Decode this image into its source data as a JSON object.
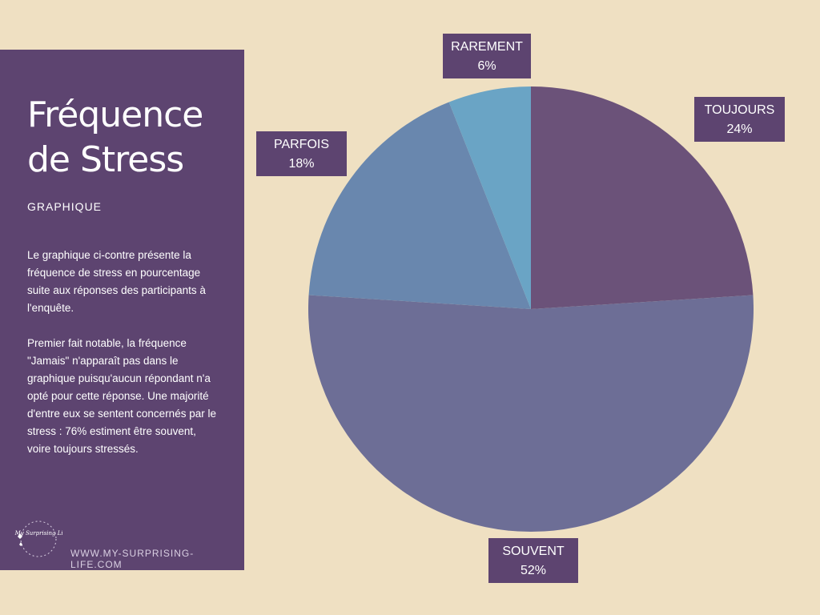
{
  "panel": {
    "title_line1": "Fréquence",
    "title_line2": "de Stress",
    "subtitle": "GRAPHIQUE",
    "paragraph1": "Le graphique ci-contre présente la fréquence de stress en pourcentage suite aux réponses des participants à l'enquête.",
    "paragraph2": "Premier fait notable, la fréquence \"Jamais\" n'apparaît pas dans le graphique puisqu'aucun répondant n'a opté pour cette réponse. Une majorité d'entre eux se sentent concernés par le stress : 76% estiment être souvent, voire toujours stressés.",
    "logo_text": "My Surprising Life",
    "footer_url": "WWW.MY-SURPRISING-LIFE.COM"
  },
  "chart_data": {
    "type": "pie",
    "title": "Fréquence de Stress",
    "unit": "%",
    "slices": [
      {
        "key": "toujours",
        "label": "TOUJOURS",
        "value": 24,
        "value_label": "24%",
        "color": "#6b5279"
      },
      {
        "key": "souvent",
        "label": "SOUVENT",
        "value": 52,
        "value_label": "52%",
        "color": "#6d6e96"
      },
      {
        "key": "parfois",
        "label": "PARFOIS",
        "value": 18,
        "value_label": "18%",
        "color": "#6987ae"
      },
      {
        "key": "rarement",
        "label": "RAREMENT",
        "value": 6,
        "value_label": "6%",
        "color": "#6aa4c5"
      }
    ]
  },
  "colors": {
    "background": "#efe0c2",
    "panel": "#5d4470",
    "label_box": "#5d4470",
    "text": "#ffffff"
  }
}
